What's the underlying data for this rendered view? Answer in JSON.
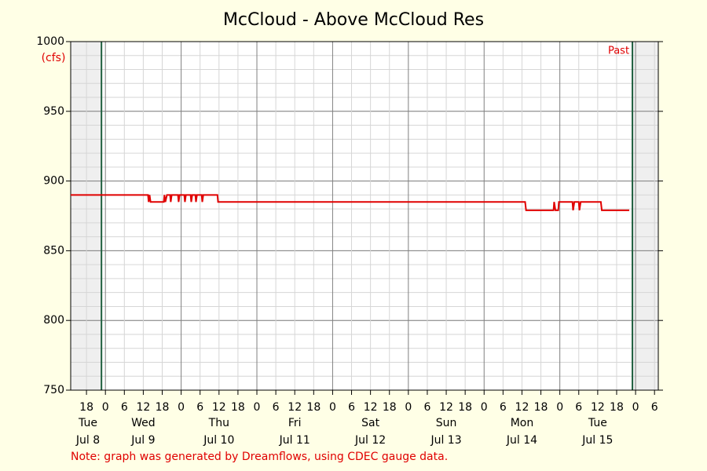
{
  "chart_data": {
    "type": "line",
    "title": "McCloud - Above McCloud Res",
    "y_unit": "(cfs)",
    "annotation": "Past",
    "note": "Note: graph was generated by Dreamflows, using CDEC gauge data.",
    "xlim": [
      13,
      199.2
    ],
    "ylim": [
      750,
      1000
    ],
    "yticks": [
      750,
      800,
      850,
      900,
      950,
      1000
    ],
    "y_minor_step": 10,
    "x_major_step": 24,
    "xticks": [
      {
        "value": 18,
        "label": "18"
      },
      {
        "value": 24,
        "label": "0"
      },
      {
        "value": 30,
        "label": "6"
      },
      {
        "value": 36,
        "label": "12"
      },
      {
        "value": 42,
        "label": "18"
      },
      {
        "value": 48,
        "label": "0"
      },
      {
        "value": 54,
        "label": "6"
      },
      {
        "value": 60,
        "label": "12"
      },
      {
        "value": 66,
        "label": "18"
      },
      {
        "value": 72,
        "label": "0"
      },
      {
        "value": 78,
        "label": "6"
      },
      {
        "value": 84,
        "label": "12"
      },
      {
        "value": 90,
        "label": "18"
      },
      {
        "value": 96,
        "label": "0"
      },
      {
        "value": 102,
        "label": "6"
      },
      {
        "value": 108,
        "label": "12"
      },
      {
        "value": 114,
        "label": "18"
      },
      {
        "value": 120,
        "label": "0"
      },
      {
        "value": 126,
        "label": "6"
      },
      {
        "value": 132,
        "label": "12"
      },
      {
        "value": 138,
        "label": "18"
      },
      {
        "value": 144,
        "label": "0"
      },
      {
        "value": 150,
        "label": "6"
      },
      {
        "value": 156,
        "label": "12"
      },
      {
        "value": 162,
        "label": "18"
      },
      {
        "value": 168,
        "label": "0"
      },
      {
        "value": 174,
        "label": "6"
      },
      {
        "value": 180,
        "label": "12"
      },
      {
        "value": 186,
        "label": "18"
      },
      {
        "value": 192,
        "label": "0"
      },
      {
        "value": 198,
        "label": "6"
      }
    ],
    "day_labels": [
      {
        "value": 12,
        "weekday": "Tue",
        "date": "Jul 8"
      },
      {
        "value": 36,
        "weekday": "Wed",
        "date": "Jul 9"
      },
      {
        "value": 60,
        "weekday": "Thu",
        "date": "Jul 10"
      },
      {
        "value": 84,
        "weekday": "Fri",
        "date": "Jul 11"
      },
      {
        "value": 108,
        "weekday": "Sat",
        "date": "Jul 12"
      },
      {
        "value": 132,
        "weekday": "Sun",
        "date": "Jul 13"
      },
      {
        "value": 156,
        "weekday": "Mon",
        "date": "Jul 14"
      },
      {
        "value": 180,
        "weekday": "Tue",
        "date": "Jul 15"
      }
    ],
    "shaded": [
      [
        13,
        22.75
      ],
      [
        191,
        199.2
      ]
    ],
    "series": [
      {
        "color": "#e00000",
        "x": [
          13,
          37.5,
          37.7,
          38,
          38.3,
          42.5,
          42.7,
          43,
          43.5,
          44.5,
          44.7,
          45,
          47,
          47.2,
          47.5,
          49,
          49.2,
          49.5,
          51,
          51.2,
          51.5,
          52.5,
          52.7,
          53,
          54.5,
          54.7,
          55,
          59.5,
          59.7,
          157,
          157.3,
          166,
          166.2,
          166.6,
          167.5,
          167.7,
          172,
          172.2,
          172.6,
          174,
          174.2,
          174.6,
          181,
          181.3,
          190
        ],
        "values": [
          890,
          890,
          885,
          890,
          885,
          885,
          890,
          885,
          890,
          890,
          885,
          890,
          890,
          885,
          890,
          890,
          885,
          890,
          890,
          885,
          890,
          890,
          885,
          890,
          890,
          885,
          890,
          890,
          885,
          885,
          879,
          879,
          885,
          879,
          879,
          885,
          885,
          879,
          885,
          885,
          879,
          885,
          885,
          879,
          879
        ]
      }
    ]
  }
}
